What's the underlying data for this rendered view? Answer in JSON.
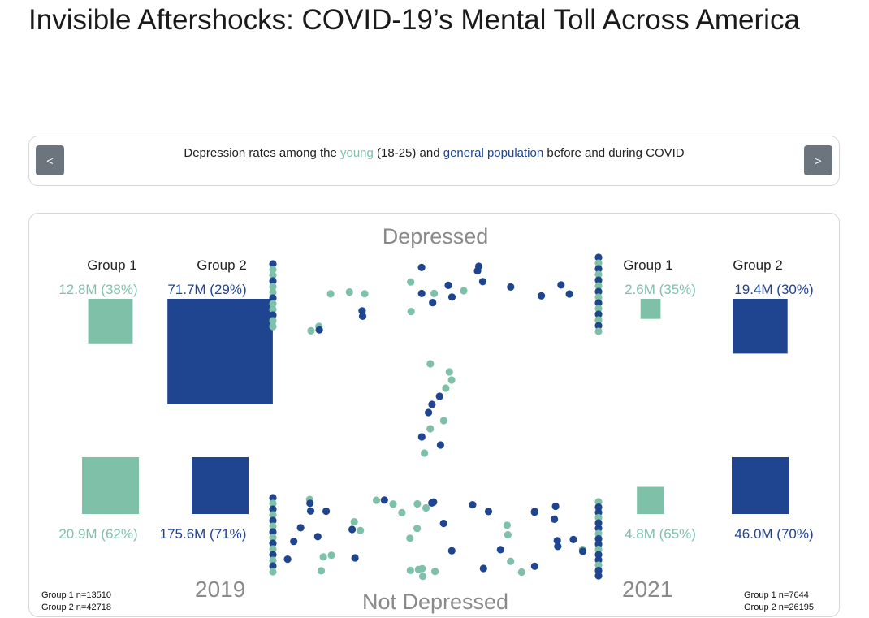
{
  "title": "Invisible Aftershocks: COVID-19’s Mental Toll Across America",
  "nav": {
    "prev_label": "<",
    "next_label": ">",
    "caption_pre": "Depression rates among the ",
    "caption_young": "young",
    "caption_mid": " (18-25) and ",
    "caption_general": "general population",
    "caption_post": " before and during COVID"
  },
  "colors": {
    "group1": "#7fc1a8",
    "group2": "#1f4591"
  },
  "chart_data": {
    "type": "bar",
    "labels": {
      "top": "Depressed",
      "bottom": "Not Depressed"
    },
    "groups": [
      "Group 1",
      "Group 2"
    ],
    "years": [
      {
        "year": "2019",
        "counts": [
          "Group 1 n=13510",
          "Group 2 n=42718"
        ],
        "depressed": [
          {
            "group": "Group 1",
            "millions": 12.8,
            "pct": 38,
            "label": "12.8M (38%)"
          },
          {
            "group": "Group 2",
            "millions": 71.7,
            "pct": 29,
            "label": "71.7M (29%)"
          }
        ],
        "not_depressed": [
          {
            "group": "Group 1",
            "millions": 20.9,
            "pct": 62,
            "label": "20.9M (62%)"
          },
          {
            "group": "Group 2",
            "millions": 175.6,
            "pct": 71,
            "label": "175.6M (71%)"
          }
        ]
      },
      {
        "year": "2021",
        "counts": [
          "Group 1 n=7644",
          "Group 2 n=26195"
        ],
        "depressed": [
          {
            "group": "Group 1",
            "millions": 2.6,
            "pct": 35,
            "label": "2.6M (35%)"
          },
          {
            "group": "Group 2",
            "millions": 19.4,
            "pct": 30,
            "label": "19.4M (30%)"
          }
        ],
        "not_depressed": [
          {
            "group": "Group 1",
            "millions": 4.8,
            "pct": 65,
            "label": "4.8M (65%)"
          },
          {
            "group": "Group 2",
            "millions": 46.0,
            "pct": 70,
            "label": "46.0M (70%)"
          }
        ]
      }
    ]
  }
}
